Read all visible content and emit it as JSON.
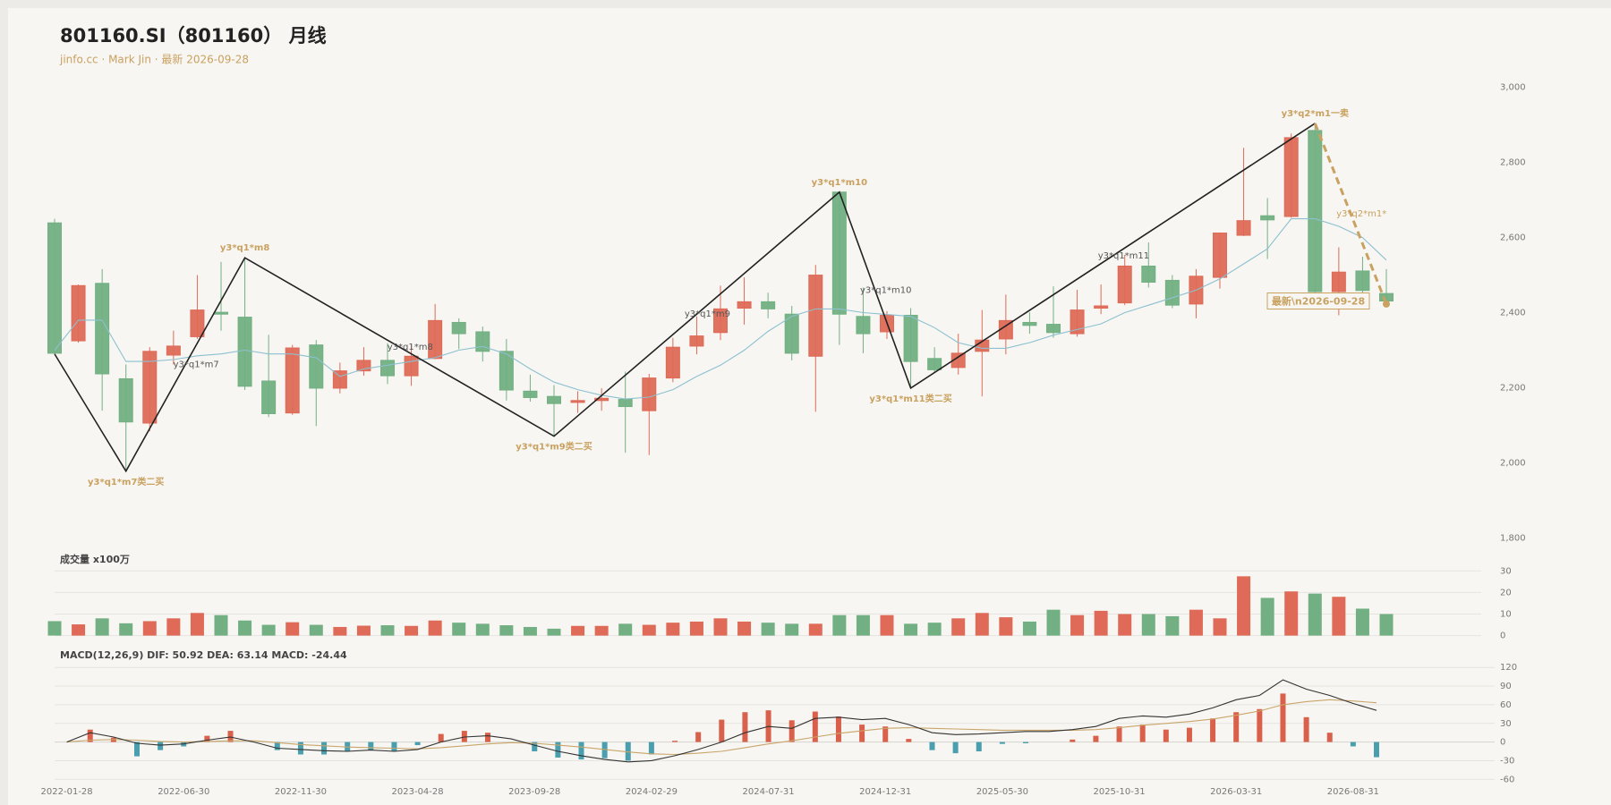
{
  "chart_data": {
    "type": "candlestick",
    "title": "801160.SI（801160） 月线",
    "subtitle": "jinfo.cc · Mark Jin · 最新 2026-09-28",
    "categories": [
      "2022-01-28",
      null,
      null,
      null,
      null,
      "2022-06-30",
      null,
      null,
      null,
      null,
      "2022-11-30",
      null,
      null,
      null,
      null,
      "2023-04-28",
      null,
      null,
      null,
      null,
      "2023-09-28",
      null,
      null,
      null,
      null,
      "2024-02-29",
      null,
      null,
      null,
      null,
      "2024-07-31",
      null,
      null,
      null,
      null,
      "2024-12-31",
      null,
      null,
      null,
      null,
      "2025-05-30",
      null,
      null,
      null,
      null,
      "2025-10-31",
      null,
      null,
      null,
      null,
      "2026-03-31",
      null,
      null,
      null,
      null,
      "2026-08-31",
      null
    ],
    "open": [
      2639,
      2325,
      2478,
      2224,
      2106,
      2287,
      2336,
      2401,
      2388,
      2218,
      2133,
      2314,
      2199,
      2245,
      2273,
      2232,
      2278,
      2374,
      2349,
      2297,
      2191,
      2177,
      2161,
      2166,
      2169,
      2139,
      2226,
      2311,
      2347,
      2412,
      2429,
      2396,
      2284,
      2721,
      2390,
      2349,
      2393,
      2278,
      2254,
      2297,
      2330,
      2374,
      2369,
      2344,
      2412,
      2426,
      2524,
      2486,
      2423,
      2494,
      2606,
      2658,
      2656,
      2885,
      2456,
      2511,
      2451
    ],
    "high": [
      2650,
      2475,
      2516,
      2262,
      2308,
      2352,
      2500,
      2535,
      2546,
      2341,
      2314,
      2327,
      2267,
      2308,
      2319,
      2314,
      2423,
      2385,
      2363,
      2330,
      2235,
      2207,
      2191,
      2199,
      2243,
      2237,
      2333,
      2390,
      2472,
      2494,
      2453,
      2418,
      2527,
      2721,
      2467,
      2404,
      2412,
      2308,
      2344,
      2407,
      2448,
      2401,
      2470,
      2461,
      2475,
      2554,
      2587,
      2500,
      2516,
      2612,
      2839,
      2705,
      2877,
      2904,
      2574,
      2549,
      2516
    ],
    "low": [
      2290,
      2320,
      2139,
      1978,
      2084,
      2262,
      2330,
      2352,
      2194,
      2122,
      2128,
      2098,
      2185,
      2232,
      2210,
      2205,
      2276,
      2303,
      2270,
      2166,
      2163,
      2071,
      2133,
      2139,
      2027,
      2021,
      2215,
      2289,
      2327,
      2368,
      2385,
      2273,
      2136,
      2314,
      2292,
      2330,
      2199,
      2240,
      2235,
      2177,
      2289,
      2344,
      2333,
      2336,
      2396,
      2420,
      2467,
      2412,
      2385,
      2464,
      2604,
      2543,
      2653,
      2453,
      2393,
      2448,
      2415
    ],
    "close": [
      2292,
      2472,
      2237,
      2109,
      2297,
      2311,
      2407,
      2396,
      2204,
      2131,
      2306,
      2199,
      2245,
      2273,
      2232,
      2284,
      2379,
      2344,
      2297,
      2194,
      2174,
      2158,
      2166,
      2172,
      2150,
      2226,
      2308,
      2338,
      2410,
      2429,
      2410,
      2292,
      2500,
      2396,
      2344,
      2393,
      2270,
      2248,
      2292,
      2327,
      2379,
      2366,
      2347,
      2407,
      2418,
      2524,
      2481,
      2420,
      2497,
      2612,
      2645,
      2647,
      2866,
      2456,
      2508,
      2459,
      2431
    ],
    "up_color": "#de6a57",
    "down_color": "#72b083",
    "ma": {
      "color": "#8cc0cf",
      "values": [
        2300,
        2380,
        2380,
        2270,
        2270,
        2275,
        2285,
        2290,
        2300,
        2290,
        2290,
        2280,
        2230,
        2250,
        2260,
        2270,
        2280,
        2300,
        2310,
        2290,
        2250,
        2215,
        2195,
        2180,
        2170,
        2175,
        2195,
        2230,
        2260,
        2300,
        2350,
        2390,
        2410,
        2410,
        2400,
        2395,
        2390,
        2360,
        2320,
        2305,
        2305,
        2320,
        2340,
        2355,
        2370,
        2400,
        2420,
        2440,
        2460,
        2490,
        2530,
        2570,
        2650,
        2650,
        2630,
        2600,
        2540
      ]
    },
    "ylim": [
      1800,
      3000
    ],
    "yticks": [
      {
        "value": 1800,
        "label": "1,800"
      },
      {
        "value": 2000,
        "label": "2,000"
      },
      {
        "value": 2200,
        "label": "2,200"
      },
      {
        "value": 2400,
        "label": "2,400"
      },
      {
        "value": 2600,
        "label": "2,600"
      },
      {
        "value": 2800,
        "label": "2,800"
      },
      {
        "value": 3000,
        "label": "3,000"
      }
    ],
    "zigzag": {
      "color": "#222222",
      "pending_color": "#c9a160",
      "points": [
        {
          "index": 0,
          "value": 2290
        },
        {
          "index": 3,
          "value": 1978,
          "label": "y3*q1*m7类二买",
          "leg": "y3*q1*m7"
        },
        {
          "index": 8,
          "value": 2546,
          "label": "y3*q1*m8",
          "leg": "y3*q1*m8"
        },
        {
          "index": 21,
          "value": 2071,
          "label": "y3*q1*m9类二买",
          "leg": "y3*q1*m9"
        },
        {
          "index": 33,
          "value": 2721,
          "label": "y3*q1*m10",
          "leg": "y3*q1*m10"
        },
        {
          "index": 36,
          "value": 2199,
          "label": "y3*q1*m11类二买",
          "leg": "y3*q1*m11"
        },
        {
          "index": 53,
          "value": 2904,
          "label": "y3*q2*m1一卖",
          "leg": "y3*q2*m1*"
        },
        {
          "index": 56,
          "value": 2423
        }
      ]
    },
    "latest_label": "最新\\n2026-09-28",
    "volume": {
      "label": "成交量 x100万",
      "values": [
        6.7,
        5.2,
        8,
        5.7,
        6.7,
        8,
        10.5,
        9.5,
        7,
        5,
        6.2,
        5,
        4,
        4.6,
        4.8,
        4.5,
        7,
        6,
        5.5,
        4.8,
        4,
        3.2,
        4.5,
        4.5,
        5.5,
        5,
        6,
        6.5,
        8,
        6.5,
        6,
        5.5,
        5.5,
        9.5,
        9.5,
        9.5,
        5.5,
        6,
        8,
        10.5,
        8.5,
        6.5,
        12,
        9.5,
        11.5,
        10,
        10,
        9,
        12,
        8,
        27.5,
        17.5,
        20.5,
        19.5,
        18,
        12.5,
        10
      ],
      "ylim": [
        0,
        30
      ],
      "yticks": [
        0,
        10,
        20,
        30
      ]
    },
    "macd": {
      "title": "MACD(12,26,9) DIF: 50.92 DEA: 63.14 MACD: -24.44",
      "hist": [
        0,
        20,
        7,
        -23,
        -13,
        -7,
        10,
        18,
        0,
        -13,
        -20,
        -20,
        -15,
        -13,
        -15,
        -5,
        13,
        18,
        15,
        0,
        -15,
        -25,
        -28,
        -26,
        -30,
        -20,
        2,
        16,
        36,
        48,
        51,
        35,
        49,
        41,
        28,
        25,
        5,
        -13,
        -18,
        -15,
        -3,
        -2,
        0,
        4,
        10,
        25,
        28,
        20,
        23,
        38,
        48,
        53,
        78,
        40,
        15,
        -7,
        -24.44
      ],
      "pos_color": "#d9604a",
      "neg_color": "#4a9fae",
      "dif": {
        "color": "#333333",
        "values": [
          0,
          15,
          8,
          -2,
          -5,
          -3,
          3,
          8,
          0,
          -10,
          -12,
          -14,
          -15,
          -13,
          -15,
          -12,
          0,
          8,
          10,
          5,
          -5,
          -15,
          -22,
          -28,
          -32,
          -30,
          -22,
          -12,
          0,
          15,
          25,
          22,
          38,
          40,
          36,
          38,
          28,
          15,
          12,
          13,
          15,
          17,
          17,
          20,
          25,
          38,
          42,
          40,
          45,
          55,
          68,
          75,
          100,
          85,
          75,
          62,
          50.92
        ]
      },
      "dea": {
        "color": "#c9a56a",
        "values": [
          0,
          3,
          4,
          3,
          1,
          0,
          1,
          2,
          2,
          -1,
          -4,
          -6,
          -8,
          -9,
          -10,
          -11,
          -9,
          -6,
          -3,
          -1,
          -2,
          -5,
          -8,
          -12,
          -16,
          -19,
          -20,
          -18,
          -15,
          -9,
          -3,
          2,
          8,
          14,
          18,
          22,
          23,
          22,
          21,
          20,
          19,
          19,
          19,
          19,
          20,
          23,
          27,
          30,
          33,
          37,
          43,
          50,
          60,
          65,
          68,
          66,
          63.14
        ]
      },
      "ylim": [
        -60,
        120
      ],
      "yticks": [
        -60,
        -30,
        0,
        30,
        60,
        90,
        120
      ]
    }
  }
}
